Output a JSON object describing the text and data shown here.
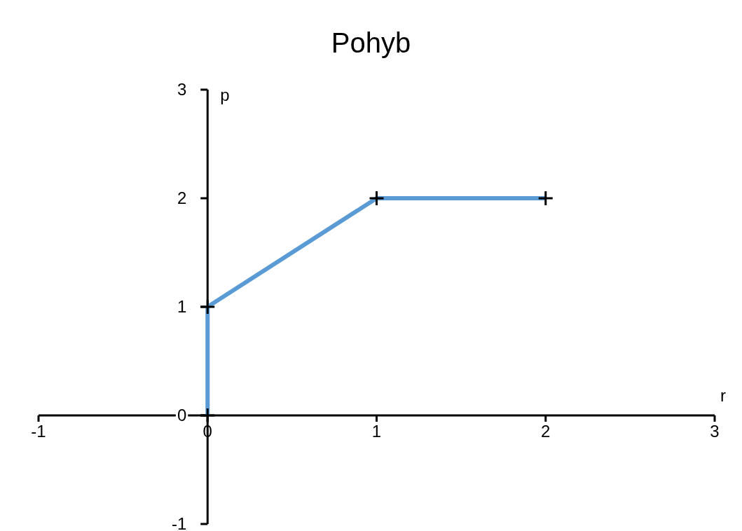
{
  "chart_data": {
    "type": "line",
    "title": "Pohyb",
    "xlabel": "r",
    "ylabel": "p",
    "x": [
      0,
      0,
      1,
      2
    ],
    "series": [
      {
        "color": "#5b9bd5",
        "values": [
          0,
          1,
          2,
          2
        ]
      }
    ],
    "xlim": [
      -1,
      3
    ],
    "xticks": [
      -1,
      0,
      1,
      2,
      3
    ],
    "ylim": [
      -1,
      3
    ],
    "yticks": [
      -1,
      0,
      1,
      2,
      3
    ],
    "marker": "cross",
    "line_style": "solid",
    "grid": false
  }
}
